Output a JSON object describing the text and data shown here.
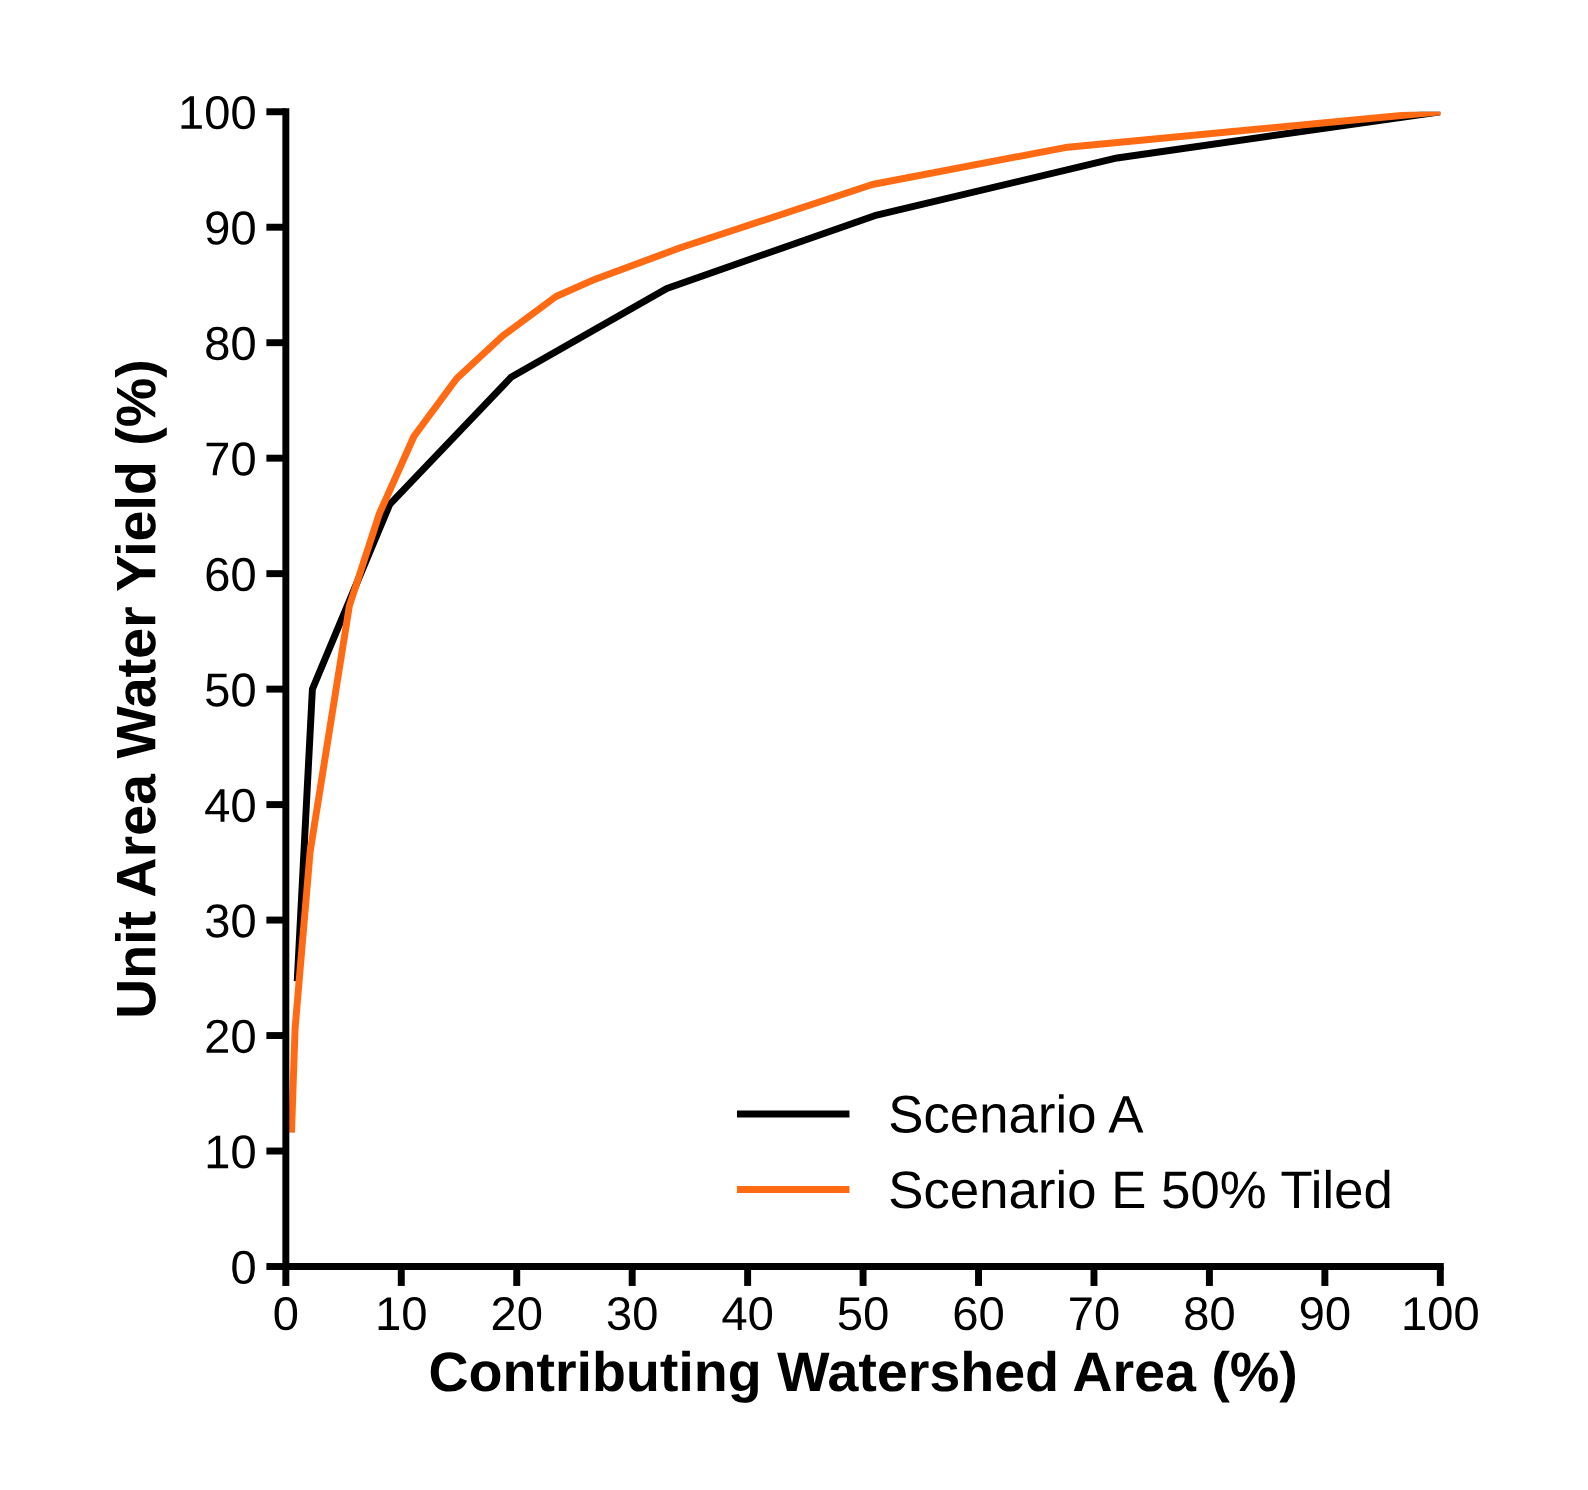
{
  "chart_data": {
    "type": "line",
    "xlabel": "Contributing Watershed Area (%)",
    "ylabel": "Unit Area Water Yield (%)",
    "xlim": [
      0,
      100
    ],
    "ylim": [
      0,
      100
    ],
    "xticks": [
      0,
      10,
      20,
      30,
      40,
      50,
      60,
      70,
      80,
      90,
      100
    ],
    "yticks": [
      0,
      10,
      20,
      30,
      40,
      50,
      60,
      70,
      80,
      90,
      100
    ],
    "grid": false,
    "legend": "bottom right",
    "line_style": "solid",
    "marker": "none",
    "series": [
      {
        "name": "Scenario A",
        "color": "#000000",
        "x": [
          1,
          2.3,
          9,
          19.5,
          33,
          51,
          72,
          100
        ],
        "values": [
          25,
          50,
          66,
          77,
          84.7,
          91,
          96,
          100
        ]
      },
      {
        "name": "Scenario E 50% Tiled",
        "color": "#ff6a13",
        "x": [
          0.5,
          0.8,
          2.1,
          5.5,
          8.1,
          11.1,
          14.8,
          18.8,
          23.4,
          26.8,
          34.1,
          50.8,
          67.5,
          100
        ],
        "values": [
          11.9,
          20.6,
          35.9,
          57.2,
          65.2,
          71.9,
          76.9,
          80.6,
          84,
          85.5,
          88.2,
          93.7,
          96.9,
          100
        ]
      }
    ]
  }
}
